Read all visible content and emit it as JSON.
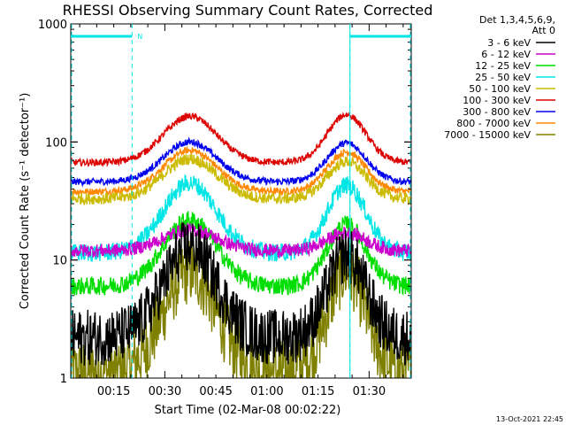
{
  "chart_data": {
    "type": "line",
    "title": "RHESSI Observing Summary Count Rates, Corrected",
    "xlabel": "Start Time (02-Mar-08 00:02:22)",
    "ylabel": "Corrected Count Rate (s⁻¹ detector⁻¹)",
    "y_scale": "log",
    "ylim": [
      1,
      1000
    ],
    "xlim_minutes": [
      0,
      100
    ],
    "x_tick_labels": [
      "00:15",
      "00:30",
      "00:45",
      "01:00",
      "01:15",
      "01:30"
    ],
    "x_tick_minutes": [
      12.63,
      27.63,
      42.63,
      57.63,
      72.63,
      87.63
    ],
    "y_tick_labels": [
      "1",
      "10",
      "100",
      "1000"
    ],
    "y_tick_values": [
      1,
      10,
      100,
      1000
    ],
    "legend_header": [
      "Det 1,3,4,5,6,9,",
      "Att 0"
    ],
    "legend_position": "right",
    "grid": false,
    "annotations": {
      "flag_label": "N",
      "flag_bars_minutes": [
        [
          0,
          18
        ],
        [
          82,
          100
        ]
      ],
      "vertical_lines_minutes": [
        18,
        82
      ],
      "solid_line_minutes": [
        82
      ],
      "timestamp": "13-Oct-2021 22:45"
    },
    "orbit_model": {
      "peak1_min": 35,
      "peak2_min": 81,
      "width1_min": 11,
      "width2_min": 8
    },
    "series": [
      {
        "name": "3 - 6 keV",
        "color": "#000000",
        "baseline": 2.2,
        "peak1": 13,
        "peak2": 11,
        "noise": 0.25
      },
      {
        "name": "6 - 12 keV",
        "color": "#cc00cc",
        "baseline": 12,
        "peak1": 18,
        "peak2": 17,
        "noise": 0.06
      },
      {
        "name": "12 - 25 keV",
        "color": "#00dd00",
        "baseline": 6,
        "peak1": 22,
        "peak2": 20,
        "noise": 0.08
      },
      {
        "name": "25 - 50 keV",
        "color": "#00e5e5",
        "baseline": 11.5,
        "peak1": 45,
        "peak2": 43,
        "noise": 0.08
      },
      {
        "name": "50 - 100 keV",
        "color": "#ccbb00",
        "baseline": 33,
        "peak1": 72,
        "peak2": 68,
        "noise": 0.05
      },
      {
        "name": "100 - 300 keV",
        "color": "#dd0000",
        "baseline": 67,
        "peak1": 165,
        "peak2": 170,
        "noise": 0.03
      },
      {
        "name": "300 - 800 keV",
        "color": "#0000ee",
        "baseline": 46,
        "peak1": 100,
        "peak2": 98,
        "noise": 0.03
      },
      {
        "name": "800 - 7000 keV",
        "color": "#ff8800",
        "baseline": 38,
        "peak1": 85,
        "peak2": 82,
        "noise": 0.03
      },
      {
        "name": "7000 - 15000 keV",
        "color": "#808000",
        "baseline": 1.1,
        "peak1": 8,
        "peak2": 8,
        "noise": 0.3
      }
    ]
  }
}
